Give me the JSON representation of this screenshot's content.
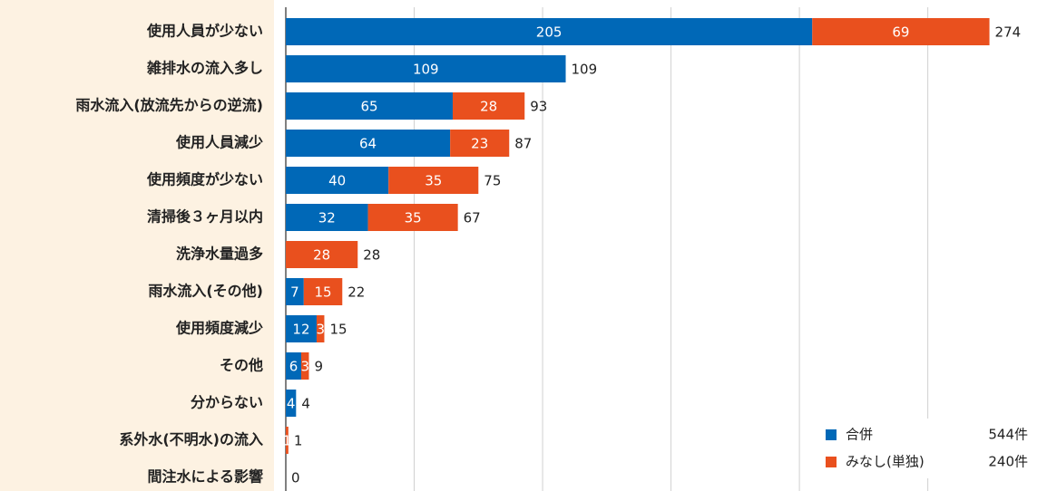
{
  "chart_data": {
    "type": "stacked-barh",
    "categories": [
      "使用人員が少ない",
      "雑排水の流入多し",
      "雨水流入(放流先からの逆流)",
      "使用人員減少",
      "使用頻度が少ない",
      "清掃後３ヶ月以内",
      "洗浄水量過多",
      "雨水流入(その他)",
      "使用頻度減少",
      "その他",
      "分からない",
      "系外水(不明水)の流入",
      "間注水による影響"
    ],
    "series": [
      {
        "name": "合併",
        "color": "#0068b7",
        "total": "544件",
        "values": [
          205,
          109,
          65,
          64,
          40,
          32,
          0,
          7,
          12,
          6,
          4,
          0,
          0
        ]
      },
      {
        "name": "みなし(単独)",
        "color": "#e9501e",
        "total": "240件",
        "values": [
          69,
          0,
          28,
          23,
          35,
          35,
          28,
          15,
          3,
          3,
          0,
          1,
          0
        ]
      }
    ],
    "totals": [
      274,
      109,
      93,
      87,
      75,
      67,
      28,
      22,
      15,
      9,
      4,
      1,
      0
    ],
    "xlim": [
      0,
      295
    ],
    "xticks": [
      0,
      50,
      100,
      150,
      200,
      250
    ],
    "grid": true
  }
}
